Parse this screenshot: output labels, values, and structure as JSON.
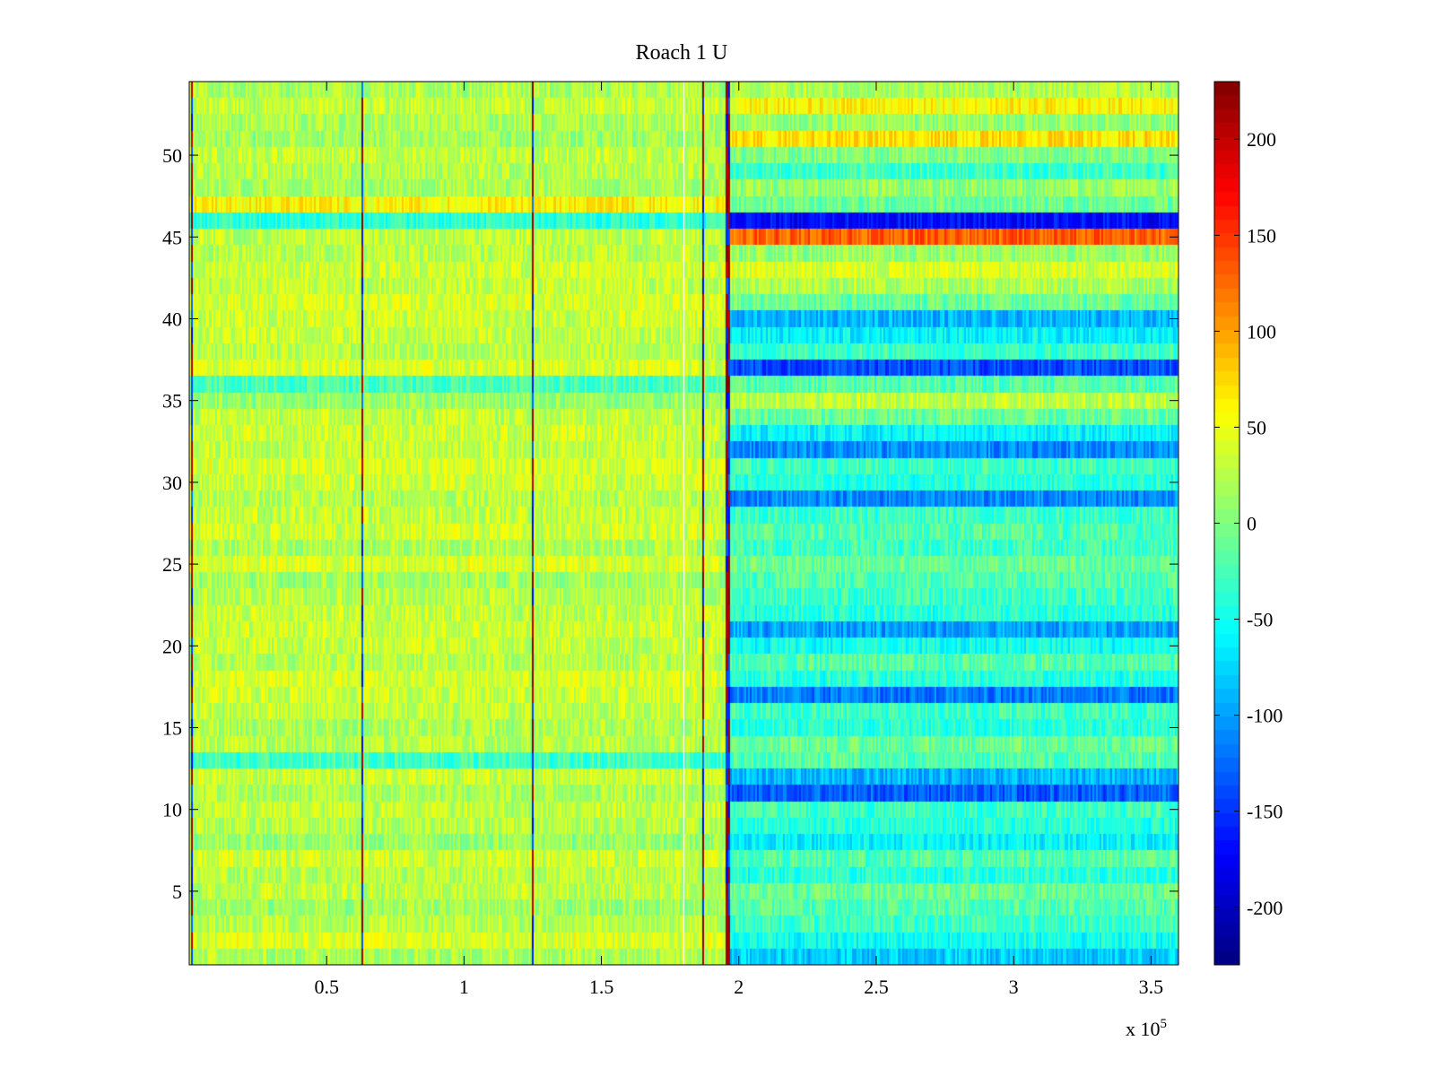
{
  "chart_data": {
    "type": "heatmap",
    "title": "Roach 1 U",
    "xlabel": "",
    "ylabel": "",
    "x_exponent_label": "x 10",
    "x_exponent_power": "5",
    "xlim": [
      0,
      360000
    ],
    "ylim": [
      0.5,
      54.5
    ],
    "x_ticks": [
      {
        "value": 50000,
        "label": "0.5"
      },
      {
        "value": 100000,
        "label": "1"
      },
      {
        "value": 150000,
        "label": "1.5"
      },
      {
        "value": 200000,
        "label": "2"
      },
      {
        "value": 250000,
        "label": "2.5"
      },
      {
        "value": 300000,
        "label": "3"
      },
      {
        "value": 350000,
        "label": "3.5"
      }
    ],
    "y_ticks": [
      {
        "value": 5,
        "label": "5"
      },
      {
        "value": 10,
        "label": "10"
      },
      {
        "value": 15,
        "label": "15"
      },
      {
        "value": 20,
        "label": "20"
      },
      {
        "value": 25,
        "label": "25"
      },
      {
        "value": 30,
        "label": "30"
      },
      {
        "value": 35,
        "label": "35"
      },
      {
        "value": 40,
        "label": "40"
      },
      {
        "value": 45,
        "label": "45"
      },
      {
        "value": 50,
        "label": "50"
      }
    ],
    "colorbar": {
      "colormap": "jet",
      "range": [
        -230,
        230
      ],
      "ticks": [
        {
          "value": 200,
          "label": "200"
        },
        {
          "value": 150,
          "label": "150"
        },
        {
          "value": 100,
          "label": "100"
        },
        {
          "value": 50,
          "label": "50"
        },
        {
          "value": 0,
          "label": "0"
        },
        {
          "value": -50,
          "label": "-50"
        },
        {
          "value": -100,
          "label": "-100"
        },
        {
          "value": -150,
          "label": "-150"
        },
        {
          "value": -200,
          "label": "-200"
        }
      ]
    },
    "segment_boundaries_x": [
      1000,
      63000,
      125000,
      187000,
      196000
    ],
    "row_means": {
      "rows": [
        1,
        2,
        3,
        4,
        5,
        6,
        7,
        8,
        9,
        10,
        11,
        12,
        13,
        14,
        15,
        16,
        17,
        18,
        19,
        20,
        21,
        22,
        23,
        24,
        25,
        26,
        27,
        28,
        29,
        30,
        31,
        32,
        33,
        34,
        35,
        36,
        37,
        38,
        39,
        40,
        41,
        42,
        43,
        44,
        45,
        46,
        47,
        48,
        49,
        50,
        51,
        52,
        53,
        54
      ],
      "segment_1_x_0_to_196000": [
        20,
        40,
        25,
        15,
        30,
        25,
        35,
        10,
        25,
        30,
        20,
        35,
        -30,
        25,
        20,
        30,
        35,
        40,
        25,
        30,
        35,
        30,
        25,
        15,
        40,
        20,
        35,
        30,
        25,
        35,
        40,
        30,
        35,
        30,
        10,
        -25,
        40,
        25,
        30,
        35,
        40,
        30,
        35,
        25,
        30,
        -40,
        60,
        20,
        25,
        30,
        15,
        20,
        30,
        20
      ],
      "segment_2_x_196000_to_360000": [
        -80,
        -50,
        -30,
        -20,
        -10,
        -40,
        -20,
        -60,
        -40,
        -30,
        -130,
        -90,
        -20,
        -10,
        -40,
        -30,
        -120,
        -40,
        -20,
        -50,
        -100,
        -40,
        -30,
        -20,
        -10,
        -30,
        -20,
        -30,
        -110,
        -40,
        -30,
        -110,
        -60,
        -10,
        30,
        -20,
        -140,
        -30,
        -60,
        -90,
        -10,
        20,
        40,
        10,
        130,
        -170,
        -10,
        10,
        -30,
        0,
        70,
        10,
        60,
        20
      ]
    },
    "noise_amplitude": 25
  }
}
